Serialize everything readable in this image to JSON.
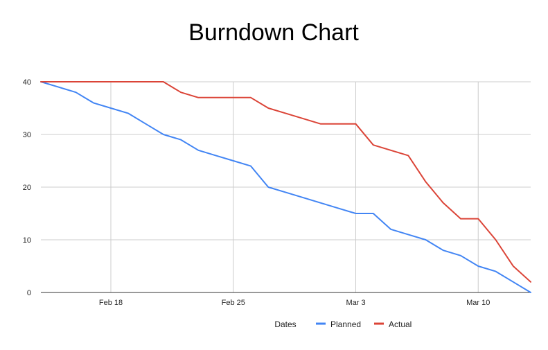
{
  "chart_data": {
    "type": "line",
    "title": "Burndown Chart",
    "xlabel": "Dates",
    "ylabel": "",
    "x_dates": [
      "2024-02-14",
      "2024-02-15",
      "2024-02-16",
      "2024-02-17",
      "2024-02-18",
      "2024-02-19",
      "2024-02-20",
      "2024-02-21",
      "2024-02-22",
      "2024-02-23",
      "2024-02-24",
      "2024-02-25",
      "2024-02-26",
      "2024-02-27",
      "2024-02-28",
      "2024-02-29",
      "2024-03-01",
      "2024-03-02",
      "2024-03-03",
      "2024-03-04",
      "2024-03-05",
      "2024-03-06",
      "2024-03-07",
      "2024-03-08",
      "2024-03-09",
      "2024-03-10",
      "2024-03-11",
      "2024-03-12",
      "2024-03-13"
    ],
    "xlim": [
      "2024-02-14",
      "2024-03-13"
    ],
    "ylim": [
      0,
      40
    ],
    "y_ticks": [
      0,
      10,
      20,
      30,
      40
    ],
    "x_ticks": [
      {
        "date": "2024-02-18",
        "label": "Feb 18"
      },
      {
        "date": "2024-02-25",
        "label": "Feb 25"
      },
      {
        "date": "2024-03-03",
        "label": "Mar 3"
      },
      {
        "date": "2024-03-10",
        "label": "Mar 10"
      }
    ],
    "grid": true,
    "legend_position": "bottom",
    "series": [
      {
        "name": "Planned",
        "color": "#4285f4",
        "values": [
          40,
          39,
          38,
          36,
          35,
          34,
          32,
          30,
          29,
          27,
          26,
          25,
          24,
          20,
          19,
          18,
          17,
          16,
          15,
          15,
          12,
          11,
          10,
          8,
          7,
          5,
          4,
          2,
          0
        ]
      },
      {
        "name": "Actual",
        "color": "#db4437",
        "values": [
          40,
          40,
          40,
          40,
          40,
          40,
          40,
          40,
          38,
          37,
          37,
          37,
          37,
          35,
          34,
          33,
          32,
          32,
          32,
          28,
          27,
          26,
          21,
          17,
          14,
          14,
          10,
          5,
          2
        ]
      }
    ]
  }
}
